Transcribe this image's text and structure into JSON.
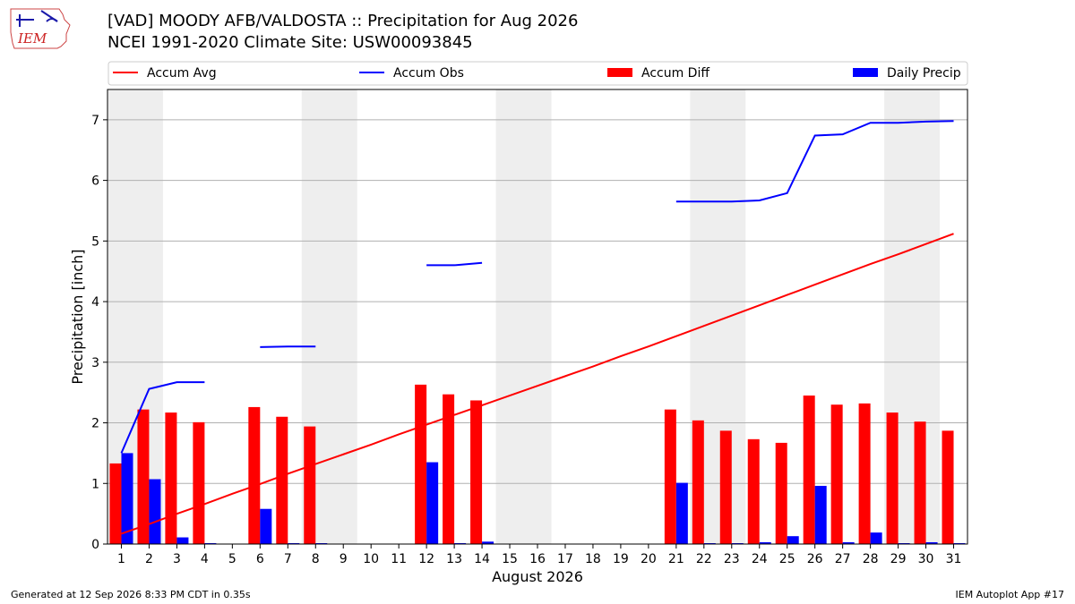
{
  "header": {
    "title_line1": "[VAD] MOODY AFB/VALDOSTA :: Precipitation for Aug 2026",
    "title_line2": "NCEI 1991-2020 Climate Site: USW00093845"
  },
  "logo": {
    "text": "IEM",
    "icon": "iem-iowa-logo"
  },
  "footer": {
    "generated": "Generated at 12 Sep 2026 8:33 PM CDT in 0.35s",
    "app": "IEM Autoplot App #17"
  },
  "colors": {
    "accum_avg": "#ff0000",
    "accum_obs": "#0000ff",
    "accum_diff": "#ff0000",
    "daily_precip": "#0000ff",
    "weekend_shade": "#eeeeee",
    "grid": "#b0b0b0"
  },
  "chart_data": {
    "type": "bar",
    "xlabel": "August 2026",
    "ylabel": "Precipitation [inch]",
    "xlim": [
      0.5,
      31.5
    ],
    "ylim": [
      0,
      7.5
    ],
    "yticks": [
      0,
      1,
      2,
      3,
      4,
      5,
      6,
      7
    ],
    "grid": "y",
    "legend_placement": "top",
    "x": [
      1,
      2,
      3,
      4,
      5,
      6,
      7,
      8,
      9,
      10,
      11,
      12,
      13,
      14,
      15,
      16,
      17,
      18,
      19,
      20,
      21,
      22,
      23,
      24,
      25,
      26,
      27,
      28,
      29,
      30,
      31
    ],
    "shaded_days": [
      [
        1,
        2
      ],
      [
        8,
        9
      ],
      [
        15,
        16
      ],
      [
        22,
        23
      ],
      [
        29,
        30
      ]
    ],
    "legend": [
      "Accum Avg",
      "Accum Obs",
      "Accum Diff",
      "Daily Precip"
    ],
    "series": [
      {
        "name": "Accum Avg",
        "kind": "line",
        "values": [
          0.17,
          0.33,
          0.5,
          0.66,
          0.83,
          0.99,
          1.16,
          1.32,
          1.48,
          1.64,
          1.81,
          1.97,
          2.13,
          2.29,
          2.45,
          2.61,
          2.77,
          2.93,
          3.1,
          3.26,
          3.43,
          3.6,
          3.77,
          3.94,
          4.11,
          4.28,
          4.45,
          4.62,
          4.78,
          4.95,
          5.12
        ]
      },
      {
        "name": "Accum Obs",
        "kind": "line",
        "values": [
          1.5,
          2.56,
          2.67,
          2.67,
          null,
          3.25,
          3.26,
          3.26,
          null,
          null,
          null,
          4.6,
          4.6,
          4.64,
          null,
          null,
          null,
          null,
          null,
          null,
          5.65,
          5.65,
          5.65,
          5.67,
          5.79,
          6.74,
          6.76,
          6.95,
          6.95,
          6.97,
          6.98
        ]
      },
      {
        "name": "Accum Diff",
        "kind": "bar",
        "values": [
          1.33,
          2.22,
          2.17,
          2.01,
          null,
          2.26,
          2.1,
          1.94,
          null,
          null,
          null,
          2.63,
          2.47,
          2.37,
          null,
          null,
          null,
          null,
          null,
          null,
          2.22,
          2.04,
          1.87,
          1.73,
          1.67,
          2.45,
          2.3,
          2.32,
          2.17,
          2.02,
          1.87
        ]
      },
      {
        "name": "Daily Precip",
        "kind": "bar",
        "values": [
          1.5,
          1.07,
          0.11,
          0.01,
          null,
          0.58,
          0.01,
          0.01,
          null,
          null,
          null,
          1.35,
          0.01,
          0.04,
          null,
          null,
          null,
          null,
          null,
          null,
          1.01,
          0.01,
          0.01,
          0.03,
          0.13,
          0.96,
          0.03,
          0.19,
          0.01,
          0.03,
          0.01
        ]
      }
    ]
  }
}
